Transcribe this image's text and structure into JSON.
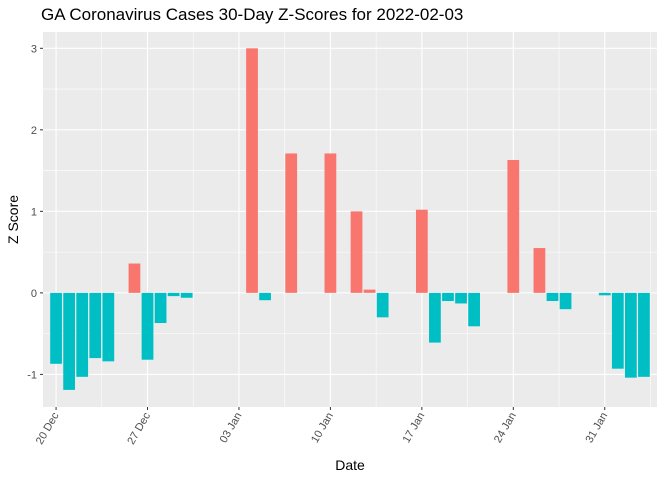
{
  "chart_data": {
    "type": "bar",
    "title": "GA Coronavirus Cases 30-Day Z-Scores for 2022-02-03",
    "xlabel": "Date",
    "ylabel": "Z Score",
    "x_ticks": [
      {
        "date": "2021-12-20",
        "label": "20 Dec"
      },
      {
        "date": "2021-12-27",
        "label": "27 Dec"
      },
      {
        "date": "2022-01-03",
        "label": "03 Jan"
      },
      {
        "date": "2022-01-10",
        "label": "10 Jan"
      },
      {
        "date": "2022-01-17",
        "label": "17 Jan"
      },
      {
        "date": "2022-01-24",
        "label": "24 Jan"
      },
      {
        "date": "2022-01-31",
        "label": "31 Jan"
      }
    ],
    "xlim": [
      "2021-12-19",
      "2022-02-04"
    ],
    "ylim": [
      -1.4,
      3.2
    ],
    "y_ticks": [
      -1,
      0,
      1,
      2,
      3
    ],
    "grid": true,
    "colors": {
      "positive": "#F8766D",
      "negative": "#00BFC4",
      "panel": "#EBEBEB",
      "grid": "#FFFFFF"
    },
    "bars": [
      {
        "date": "2021-12-20",
        "value": -0.87
      },
      {
        "date": "2021-12-21",
        "value": -1.19
      },
      {
        "date": "2021-12-22",
        "value": -1.03
      },
      {
        "date": "2021-12-23",
        "value": -0.8
      },
      {
        "date": "2021-12-24",
        "value": -0.84
      },
      {
        "date": "2021-12-26",
        "value": 0.36
      },
      {
        "date": "2021-12-27",
        "value": -0.82
      },
      {
        "date": "2021-12-28",
        "value": -0.37
      },
      {
        "date": "2021-12-29",
        "value": -0.04
      },
      {
        "date": "2021-12-30",
        "value": -0.06
      },
      {
        "date": "2022-01-04",
        "value": 3.0
      },
      {
        "date": "2022-01-05",
        "value": -0.09
      },
      {
        "date": "2022-01-07",
        "value": 1.71
      },
      {
        "date": "2022-01-10",
        "value": 1.71
      },
      {
        "date": "2022-01-12",
        "value": 1.0
      },
      {
        "date": "2022-01-13",
        "value": 0.04
      },
      {
        "date": "2022-01-14",
        "value": -0.3
      },
      {
        "date": "2022-01-17",
        "value": 1.02
      },
      {
        "date": "2022-01-18",
        "value": -0.61
      },
      {
        "date": "2022-01-19",
        "value": -0.1
      },
      {
        "date": "2022-01-20",
        "value": -0.13
      },
      {
        "date": "2022-01-21",
        "value": -0.41
      },
      {
        "date": "2022-01-24",
        "value": 1.63
      },
      {
        "date": "2022-01-26",
        "value": 0.55
      },
      {
        "date": "2022-01-27",
        "value": -0.1
      },
      {
        "date": "2022-01-28",
        "value": -0.2
      },
      {
        "date": "2022-01-31",
        "value": -0.03
      },
      {
        "date": "2022-02-01",
        "value": -0.93
      },
      {
        "date": "2022-02-02",
        "value": -1.04
      },
      {
        "date": "2022-02-03",
        "value": -1.03
      }
    ]
  }
}
